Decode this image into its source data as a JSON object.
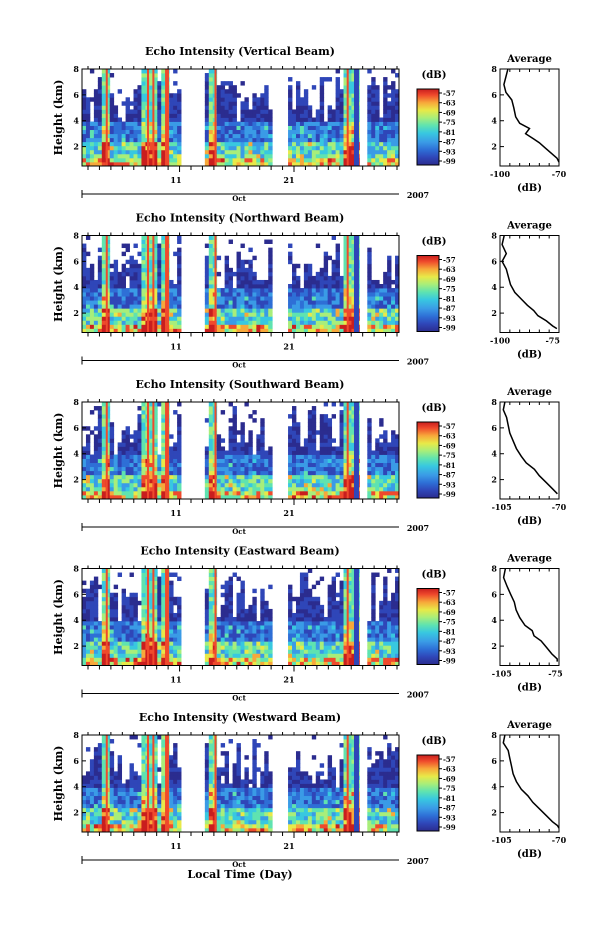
{
  "figure": {
    "xlabel": "Local Time (Day)",
    "month": "Oct",
    "year": "2007",
    "colorbar_unit": "(dB)",
    "colorbar_ticks": [
      "-57",
      "-63",
      "-69",
      "-75",
      "-81",
      "-87",
      "-93",
      "-99"
    ],
    "colors": [
      "#2b2c8f",
      "#2f46b8",
      "#2e6fd6",
      "#3a9be6",
      "#38c8e0",
      "#5fe3b0",
      "#a8ee7a",
      "#e8e948",
      "#f7a83a",
      "#ef4a2c",
      "#c91e1e"
    ]
  },
  "chart_data": [
    {
      "type": "heatmap",
      "title": "Echo Intensity (Vertical Beam)",
      "ylabel": "Height (km)",
      "ylim": [
        0.5,
        8
      ],
      "yticks": [
        "2",
        "4",
        "6",
        "8"
      ],
      "xticks": [
        "11",
        "21"
      ],
      "clim": [
        -99,
        -57
      ],
      "profile": {
        "title": "Average",
        "xlabel": "(dB)",
        "xticks": [
          "-100",
          "-70"
        ],
        "xlim": [
          -100,
          -70
        ],
        "yticks": [
          "2",
          "4",
          "6",
          "8"
        ],
        "points": [
          [
            -96,
            8
          ],
          [
            -97,
            7.4
          ],
          [
            -98,
            6.8
          ],
          [
            -97,
            6.2
          ],
          [
            -94,
            5.6
          ],
          [
            -93,
            5.0
          ],
          [
            -92,
            4.3
          ],
          [
            -90,
            3.8
          ],
          [
            -85,
            3.4
          ],
          [
            -87,
            3.0
          ],
          [
            -83,
            2.6
          ],
          [
            -80,
            2.3
          ],
          [
            -77,
            1.9
          ],
          [
            -74,
            1.5
          ],
          [
            -71,
            1.1
          ],
          [
            -70,
            0.8
          ]
        ]
      }
    },
    {
      "type": "heatmap",
      "title": "Echo Intensity (Northward Beam)",
      "ylabel": "Height (km)",
      "ylim": [
        0.5,
        8
      ],
      "yticks": [
        "2",
        "4",
        "6",
        "8"
      ],
      "xticks": [
        "11",
        "21"
      ],
      "clim": [
        -99,
        -57
      ],
      "profile": {
        "title": "Average",
        "xlabel": "(dB)",
        "xticks": [
          "-100",
          "-75"
        ],
        "xlim": [
          -100,
          -72
        ],
        "yticks": [
          "2",
          "4",
          "6",
          "8"
        ],
        "points": [
          [
            -98,
            8
          ],
          [
            -99,
            7.3
          ],
          [
            -97,
            6.6
          ],
          [
            -99,
            6.0
          ],
          [
            -97,
            5.4
          ],
          [
            -96,
            4.8
          ],
          [
            -95,
            4.2
          ],
          [
            -93,
            3.6
          ],
          [
            -90,
            3.1
          ],
          [
            -87,
            2.6
          ],
          [
            -84,
            2.2
          ],
          [
            -82,
            1.8
          ],
          [
            -78,
            1.4
          ],
          [
            -75,
            1.0
          ],
          [
            -73,
            0.8
          ]
        ]
      }
    },
    {
      "type": "heatmap",
      "title": "Echo Intensity (Southward Beam)",
      "ylabel": "Height (km)",
      "ylim": [
        0.5,
        8
      ],
      "yticks": [
        "2",
        "4",
        "6",
        "8"
      ],
      "xticks": [
        "11",
        "21"
      ],
      "clim": [
        -99,
        -57
      ],
      "profile": {
        "title": "Average",
        "xlabel": "(dB)",
        "xticks": [
          "-105",
          "-70"
        ],
        "xlim": [
          -106,
          -70
        ],
        "yticks": [
          "2",
          "4",
          "6",
          "8"
        ],
        "points": [
          [
            -103,
            8
          ],
          [
            -104,
            7.4
          ],
          [
            -102,
            6.8
          ],
          [
            -101,
            6.2
          ],
          [
            -100,
            5.6
          ],
          [
            -98,
            5.0
          ],
          [
            -96,
            4.4
          ],
          [
            -93,
            3.8
          ],
          [
            -90,
            3.3
          ],
          [
            -85,
            2.8
          ],
          [
            -82,
            2.3
          ],
          [
            -78,
            1.8
          ],
          [
            -74,
            1.3
          ],
          [
            -71,
            0.9
          ]
        ]
      }
    },
    {
      "type": "heatmap",
      "title": "Echo Intensity (Eastward Beam)",
      "ylabel": "Height (km)",
      "ylim": [
        0.5,
        8
      ],
      "yticks": [
        "2",
        "4",
        "6",
        "8"
      ],
      "xticks": [
        "11",
        "21"
      ],
      "clim": [
        -99,
        -57
      ],
      "profile": {
        "title": "Average",
        "xlabel": "(dB)",
        "xticks": [
          "-105",
          "-75"
        ],
        "xlim": [
          -106,
          -73
        ],
        "yticks": [
          "2",
          "4",
          "6",
          "8"
        ],
        "points": [
          [
            -103,
            8
          ],
          [
            -104,
            7.3
          ],
          [
            -102,
            6.6
          ],
          [
            -100,
            6.0
          ],
          [
            -98,
            5.4
          ],
          [
            -97,
            4.8
          ],
          [
            -95,
            4.2
          ],
          [
            -92,
            3.6
          ],
          [
            -88,
            3.2
          ],
          [
            -87,
            2.8
          ],
          [
            -83,
            2.4
          ],
          [
            -80,
            1.9
          ],
          [
            -77,
            1.4
          ],
          [
            -74,
            1.0
          ],
          [
            -74,
            0.8
          ]
        ]
      }
    },
    {
      "type": "heatmap",
      "title": "Echo Intensity (Westward Beam)",
      "ylabel": "Height (km)",
      "ylim": [
        0.5,
        8
      ],
      "yticks": [
        "2",
        "4",
        "6",
        "8"
      ],
      "xticks": [
        "11",
        "21"
      ],
      "clim": [
        -99,
        -57
      ],
      "profile": {
        "title": "Average",
        "xlabel": "(dB)",
        "xticks": [
          "-105",
          "-70"
        ],
        "xlim": [
          -106,
          -70
        ],
        "yticks": [
          "2",
          "4",
          "6",
          "8"
        ],
        "points": [
          [
            -103,
            8
          ],
          [
            -104,
            7.4
          ],
          [
            -101,
            6.8
          ],
          [
            -100,
            6.2
          ],
          [
            -99,
            5.6
          ],
          [
            -98,
            5.0
          ],
          [
            -96,
            4.4
          ],
          [
            -93,
            3.8
          ],
          [
            -89,
            3.3
          ],
          [
            -86,
            2.8
          ],
          [
            -82,
            2.3
          ],
          [
            -78,
            1.8
          ],
          [
            -74,
            1.3
          ],
          [
            -71,
            1.0
          ],
          [
            -70,
            0.8
          ]
        ]
      }
    }
  ]
}
